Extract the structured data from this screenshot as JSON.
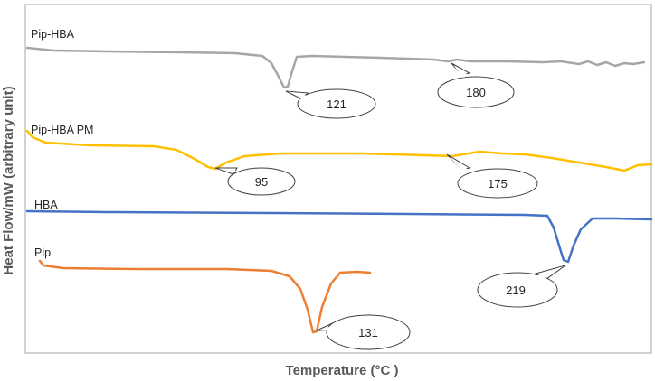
{
  "chart_data": {
    "type": "line",
    "xlabel": "Temperature (°C )",
    "ylabel": "Heat Flow/mW (arbitrary unit)",
    "grid": false,
    "series": [
      {
        "name": "Pip-HBA",
        "color": "#a6a6a6",
        "annotations": [
          "121",
          "180"
        ]
      },
      {
        "name": "Pip-HBA PM",
        "color": "#ffc000",
        "annotations": [
          "95",
          "175"
        ]
      },
      {
        "name": "HBA",
        "color": "#4472c4",
        "annotations": [
          "219"
        ]
      },
      {
        "name": "Pip",
        "color": "#ed7d31",
        "annotations": [
          "131"
        ]
      }
    ]
  }
}
